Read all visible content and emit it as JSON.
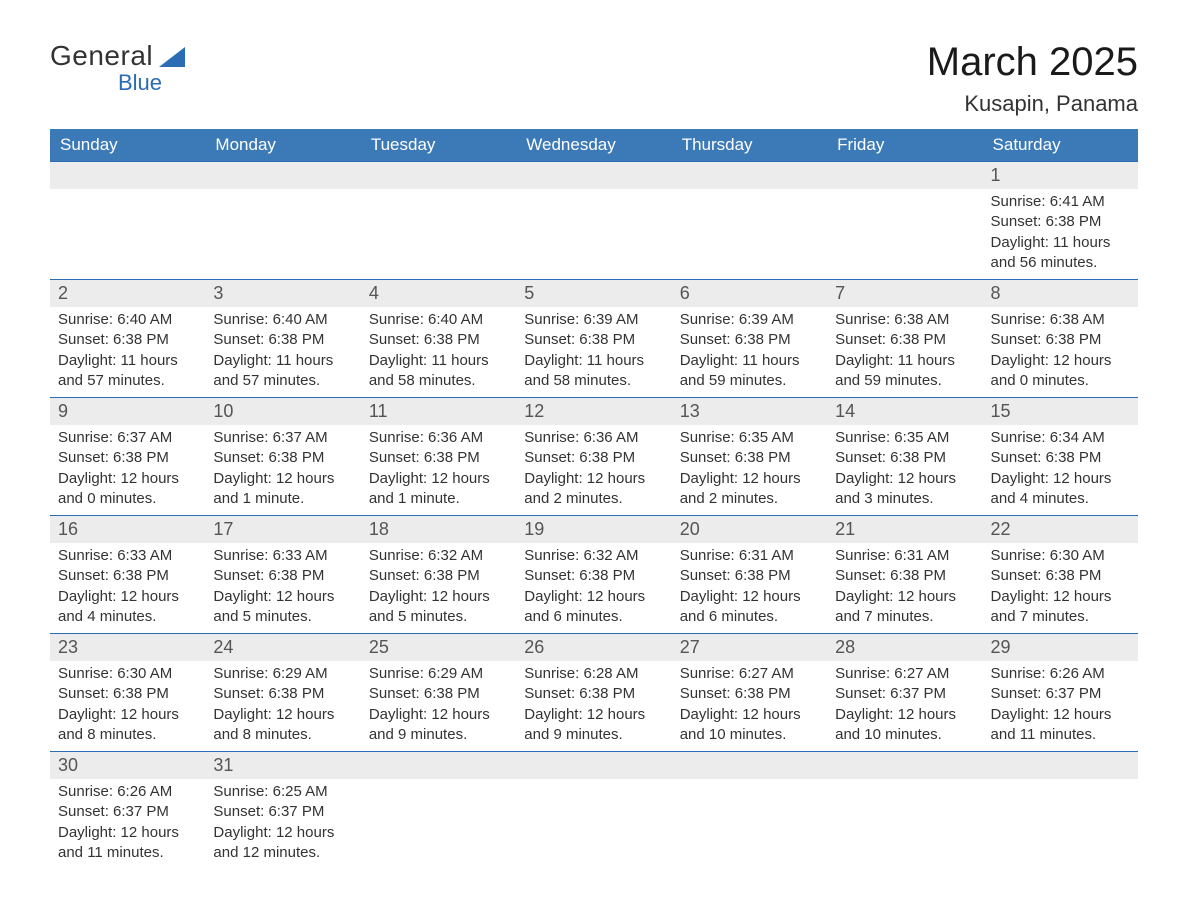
{
  "logo": {
    "text_main": "General",
    "text_sub": "Blue"
  },
  "header": {
    "month_title": "March 2025",
    "location": "Kusapin, Panama"
  },
  "styles": {
    "header_bg": "#3b79b7",
    "header_fg": "#ffffff",
    "daynum_bg": "#ececec",
    "daynum_fg": "#555555",
    "detail_fg": "#333333",
    "border_color": "#2a6db5",
    "page_bg": "#ffffff",
    "month_title_fontsize": 40,
    "location_fontsize": 22,
    "dayheader_fontsize": 17,
    "daynum_fontsize": 18,
    "detail_fontsize": 15
  },
  "day_headers": [
    "Sunday",
    "Monday",
    "Tuesday",
    "Wednesday",
    "Thursday",
    "Friday",
    "Saturday"
  ],
  "weeks": [
    [
      null,
      null,
      null,
      null,
      null,
      null,
      {
        "n": "1",
        "sunrise": "Sunrise: 6:41 AM",
        "sunset": "Sunset: 6:38 PM",
        "daylight": "Daylight: 11 hours and 56 minutes."
      }
    ],
    [
      {
        "n": "2",
        "sunrise": "Sunrise: 6:40 AM",
        "sunset": "Sunset: 6:38 PM",
        "daylight": "Daylight: 11 hours and 57 minutes."
      },
      {
        "n": "3",
        "sunrise": "Sunrise: 6:40 AM",
        "sunset": "Sunset: 6:38 PM",
        "daylight": "Daylight: 11 hours and 57 minutes."
      },
      {
        "n": "4",
        "sunrise": "Sunrise: 6:40 AM",
        "sunset": "Sunset: 6:38 PM",
        "daylight": "Daylight: 11 hours and 58 minutes."
      },
      {
        "n": "5",
        "sunrise": "Sunrise: 6:39 AM",
        "sunset": "Sunset: 6:38 PM",
        "daylight": "Daylight: 11 hours and 58 minutes."
      },
      {
        "n": "6",
        "sunrise": "Sunrise: 6:39 AM",
        "sunset": "Sunset: 6:38 PM",
        "daylight": "Daylight: 11 hours and 59 minutes."
      },
      {
        "n": "7",
        "sunrise": "Sunrise: 6:38 AM",
        "sunset": "Sunset: 6:38 PM",
        "daylight": "Daylight: 11 hours and 59 minutes."
      },
      {
        "n": "8",
        "sunrise": "Sunrise: 6:38 AM",
        "sunset": "Sunset: 6:38 PM",
        "daylight": "Daylight: 12 hours and 0 minutes."
      }
    ],
    [
      {
        "n": "9",
        "sunrise": "Sunrise: 6:37 AM",
        "sunset": "Sunset: 6:38 PM",
        "daylight": "Daylight: 12 hours and 0 minutes."
      },
      {
        "n": "10",
        "sunrise": "Sunrise: 6:37 AM",
        "sunset": "Sunset: 6:38 PM",
        "daylight": "Daylight: 12 hours and 1 minute."
      },
      {
        "n": "11",
        "sunrise": "Sunrise: 6:36 AM",
        "sunset": "Sunset: 6:38 PM",
        "daylight": "Daylight: 12 hours and 1 minute."
      },
      {
        "n": "12",
        "sunrise": "Sunrise: 6:36 AM",
        "sunset": "Sunset: 6:38 PM",
        "daylight": "Daylight: 12 hours and 2 minutes."
      },
      {
        "n": "13",
        "sunrise": "Sunrise: 6:35 AM",
        "sunset": "Sunset: 6:38 PM",
        "daylight": "Daylight: 12 hours and 2 minutes."
      },
      {
        "n": "14",
        "sunrise": "Sunrise: 6:35 AM",
        "sunset": "Sunset: 6:38 PM",
        "daylight": "Daylight: 12 hours and 3 minutes."
      },
      {
        "n": "15",
        "sunrise": "Sunrise: 6:34 AM",
        "sunset": "Sunset: 6:38 PM",
        "daylight": "Daylight: 12 hours and 4 minutes."
      }
    ],
    [
      {
        "n": "16",
        "sunrise": "Sunrise: 6:33 AM",
        "sunset": "Sunset: 6:38 PM",
        "daylight": "Daylight: 12 hours and 4 minutes."
      },
      {
        "n": "17",
        "sunrise": "Sunrise: 6:33 AM",
        "sunset": "Sunset: 6:38 PM",
        "daylight": "Daylight: 12 hours and 5 minutes."
      },
      {
        "n": "18",
        "sunrise": "Sunrise: 6:32 AM",
        "sunset": "Sunset: 6:38 PM",
        "daylight": "Daylight: 12 hours and 5 minutes."
      },
      {
        "n": "19",
        "sunrise": "Sunrise: 6:32 AM",
        "sunset": "Sunset: 6:38 PM",
        "daylight": "Daylight: 12 hours and 6 minutes."
      },
      {
        "n": "20",
        "sunrise": "Sunrise: 6:31 AM",
        "sunset": "Sunset: 6:38 PM",
        "daylight": "Daylight: 12 hours and 6 minutes."
      },
      {
        "n": "21",
        "sunrise": "Sunrise: 6:31 AM",
        "sunset": "Sunset: 6:38 PM",
        "daylight": "Daylight: 12 hours and 7 minutes."
      },
      {
        "n": "22",
        "sunrise": "Sunrise: 6:30 AM",
        "sunset": "Sunset: 6:38 PM",
        "daylight": "Daylight: 12 hours and 7 minutes."
      }
    ],
    [
      {
        "n": "23",
        "sunrise": "Sunrise: 6:30 AM",
        "sunset": "Sunset: 6:38 PM",
        "daylight": "Daylight: 12 hours and 8 minutes."
      },
      {
        "n": "24",
        "sunrise": "Sunrise: 6:29 AM",
        "sunset": "Sunset: 6:38 PM",
        "daylight": "Daylight: 12 hours and 8 minutes."
      },
      {
        "n": "25",
        "sunrise": "Sunrise: 6:29 AM",
        "sunset": "Sunset: 6:38 PM",
        "daylight": "Daylight: 12 hours and 9 minutes."
      },
      {
        "n": "26",
        "sunrise": "Sunrise: 6:28 AM",
        "sunset": "Sunset: 6:38 PM",
        "daylight": "Daylight: 12 hours and 9 minutes."
      },
      {
        "n": "27",
        "sunrise": "Sunrise: 6:27 AM",
        "sunset": "Sunset: 6:38 PM",
        "daylight": "Daylight: 12 hours and 10 minutes."
      },
      {
        "n": "28",
        "sunrise": "Sunrise: 6:27 AM",
        "sunset": "Sunset: 6:37 PM",
        "daylight": "Daylight: 12 hours and 10 minutes."
      },
      {
        "n": "29",
        "sunrise": "Sunrise: 6:26 AM",
        "sunset": "Sunset: 6:37 PM",
        "daylight": "Daylight: 12 hours and 11 minutes."
      }
    ],
    [
      {
        "n": "30",
        "sunrise": "Sunrise: 6:26 AM",
        "sunset": "Sunset: 6:37 PM",
        "daylight": "Daylight: 12 hours and 11 minutes."
      },
      {
        "n": "31",
        "sunrise": "Sunrise: 6:25 AM",
        "sunset": "Sunset: 6:37 PM",
        "daylight": "Daylight: 12 hours and 12 minutes."
      },
      null,
      null,
      null,
      null,
      null
    ]
  ]
}
